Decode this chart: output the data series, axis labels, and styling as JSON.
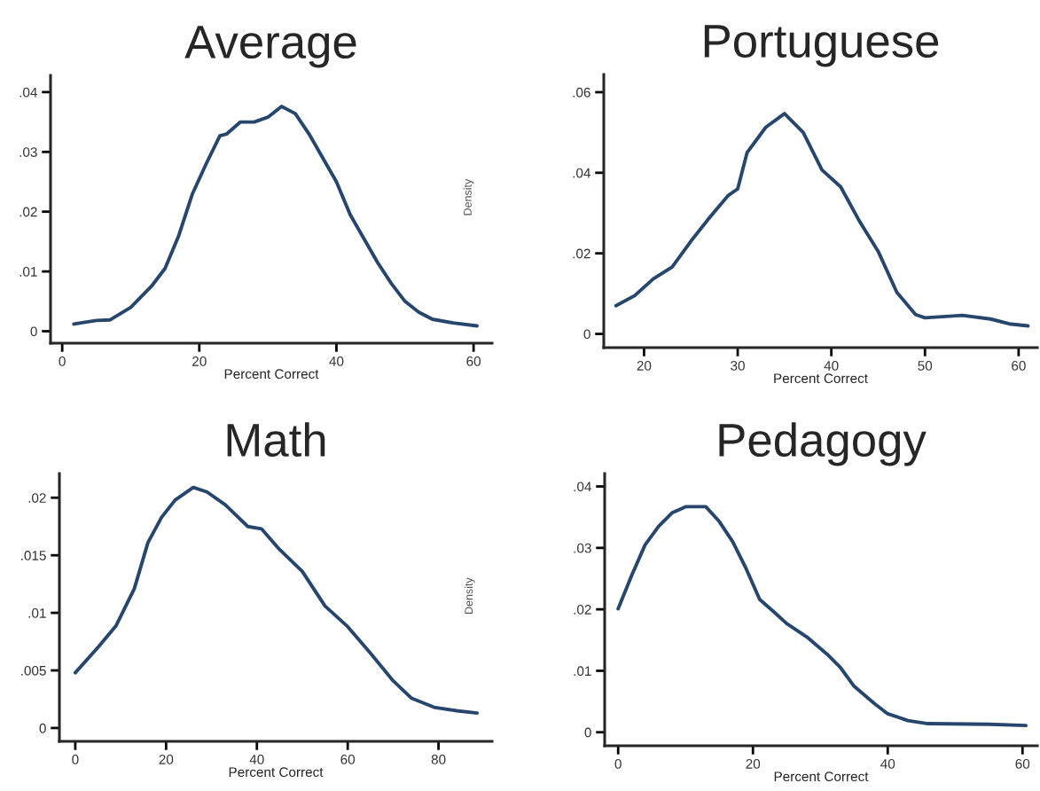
{
  "chart_data": [
    {
      "type": "line",
      "title": "Average",
      "xlabel": "Percent Correct",
      "x": [
        1.7,
        5,
        7,
        10,
        13,
        15,
        17,
        19,
        21,
        23,
        24,
        26,
        28,
        30,
        32,
        34,
        36,
        38,
        40,
        42,
        44,
        46,
        48,
        50,
        52,
        54,
        57,
        60.5
      ],
      "series": [
        {
          "color": "#26466d",
          "values": [
            0.0012,
            0.0018,
            0.0019,
            0.004,
            0.0075,
            0.0105,
            0.016,
            0.023,
            0.028,
            0.0327,
            0.033,
            0.035,
            0.035,
            0.0358,
            0.0376,
            0.0364,
            0.033,
            0.029,
            0.025,
            0.0195,
            0.0155,
            0.0115,
            0.008,
            0.005,
            0.0032,
            0.002,
            0.0014,
            0.0009
          ]
        }
      ],
      "xlim": [
        -1.7,
        62.7
      ],
      "ylim": [
        -0.002,
        0.0428
      ],
      "xticks": [
        0,
        20,
        40,
        60
      ],
      "yticks": [
        0,
        {
          "value": 0.01,
          "label": ".01"
        },
        {
          "value": 0.02,
          "label": ".02"
        },
        {
          "value": 0.03,
          "label": ".03"
        },
        {
          "value": 0.04,
          "label": ".04"
        }
      ],
      "grid": false,
      "legend": false
    },
    {
      "type": "line",
      "title": "Portuguese",
      "xlabel": "Percent Correct",
      "ylabel": "Density",
      "x": [
        17,
        19,
        21,
        23,
        25,
        27,
        29,
        30,
        31,
        33,
        35,
        37,
        39,
        41,
        43,
        45,
        47,
        49,
        50,
        54,
        57,
        59,
        61
      ],
      "series": [
        {
          "color": "#26466d",
          "values": [
            0.007,
            0.0095,
            0.0137,
            0.0166,
            0.023,
            0.0289,
            0.0344,
            0.036,
            0.045,
            0.0513,
            0.0547,
            0.05,
            0.0407,
            0.0365,
            0.028,
            0.0205,
            0.0103,
            0.0048,
            0.004,
            0.0046,
            0.0037,
            0.0025,
            0.002
          ]
        }
      ],
      "xlim": [
        15.7,
        62
      ],
      "ylim": [
        -0.0034,
        0.0644
      ],
      "xticks": [
        20,
        30,
        40,
        50,
        60
      ],
      "yticks": [
        0,
        {
          "value": 0.02,
          "label": ".02"
        },
        {
          "value": 0.04,
          "label": ".04"
        },
        {
          "value": 0.06,
          "label": ".06"
        }
      ],
      "grid": false,
      "legend": false
    },
    {
      "type": "line",
      "title": "Math",
      "xlabel": "Percent Correct",
      "x": [
        0,
        5,
        9,
        13,
        16,
        19,
        22,
        26,
        29,
        33,
        38,
        41,
        45,
        50,
        55,
        60,
        65,
        70,
        74,
        79,
        84,
        88.5
      ],
      "series": [
        {
          "color": "#26466d",
          "values": [
            0.0048,
            0.007,
            0.0089,
            0.0121,
            0.0161,
            0.0183,
            0.0198,
            0.0209,
            0.0205,
            0.0194,
            0.0175,
            0.0173,
            0.0155,
            0.0136,
            0.0106,
            0.0088,
            0.0065,
            0.0041,
            0.0026,
            0.0018,
            0.0015,
            0.0013
          ]
        }
      ],
      "xlim": [
        -3.5,
        91.8
      ],
      "ylim": [
        -0.00116,
        0.0221
      ],
      "xticks": [
        0,
        20,
        40,
        60,
        80
      ],
      "yticks": [
        0,
        {
          "value": 0.005,
          "label": ".005"
        },
        {
          "value": 0.01,
          "label": ".01"
        },
        {
          "value": 0.015,
          "label": ".015"
        },
        {
          "value": 0.02,
          "label": ".02"
        }
      ],
      "grid": false,
      "legend": false
    },
    {
      "type": "line",
      "title": "Pedagogy",
      "xlabel": "Percent Correct",
      "ylabel": "Density",
      "x": [
        0,
        2,
        4,
        6,
        8,
        10,
        12,
        13,
        15,
        17,
        19,
        21,
        23,
        25,
        28,
        31,
        33,
        35,
        38,
        40,
        43,
        46,
        55,
        60.5
      ],
      "series": [
        {
          "color": "#26466d",
          "values": [
            0.0201,
            0.0255,
            0.0305,
            0.0335,
            0.0357,
            0.0367,
            0.0367,
            0.0367,
            0.0343,
            0.031,
            0.0266,
            0.0216,
            0.0197,
            0.0177,
            0.0155,
            0.0127,
            0.0105,
            0.0075,
            0.0047,
            0.003,
            0.0019,
            0.0014,
            0.0013,
            0.0011
          ]
        }
      ],
      "xlim": [
        -2,
        62.2
      ],
      "ylim": [
        -0.0022,
        0.0421
      ],
      "xticks": [
        0,
        20,
        40,
        60
      ],
      "yticks": [
        0,
        {
          "value": 0.01,
          "label": ".01"
        },
        {
          "value": 0.02,
          "label": ".02"
        },
        {
          "value": 0.03,
          "label": ".03"
        },
        {
          "value": 0.04,
          "label": ".04"
        }
      ],
      "grid": false,
      "legend": false
    }
  ]
}
